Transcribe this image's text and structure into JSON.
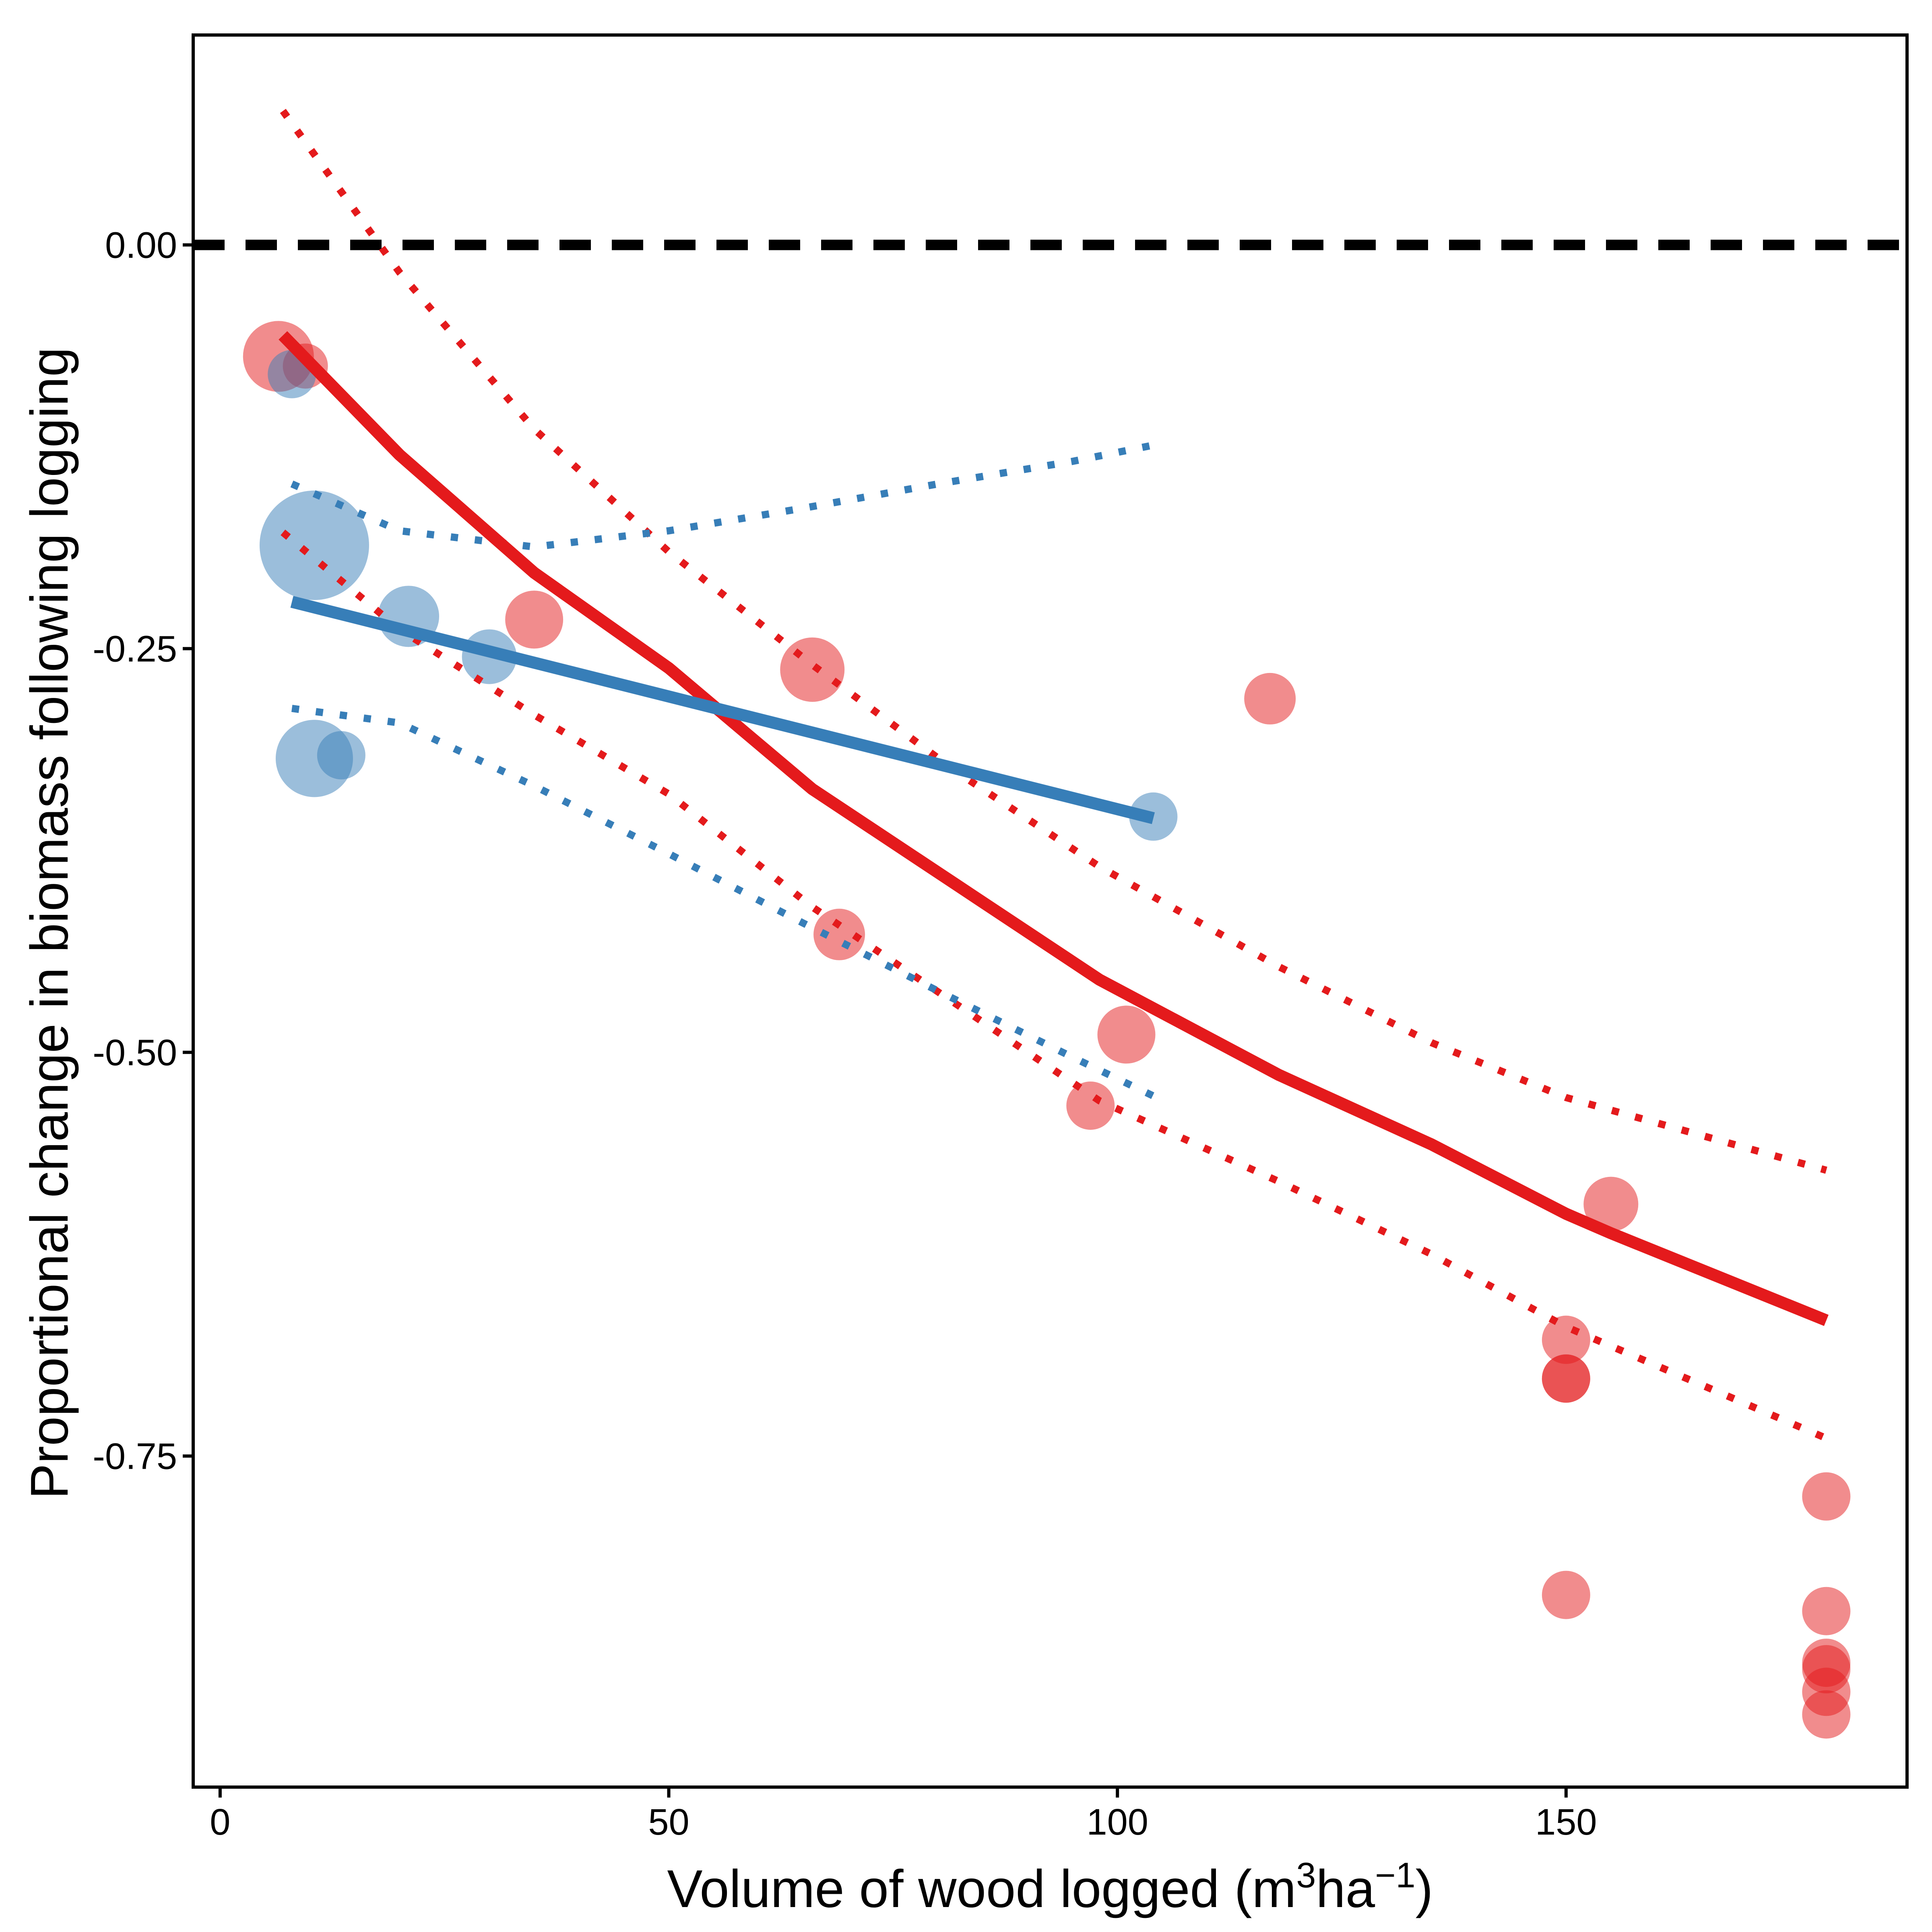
{
  "chart_data": {
    "type": "scatter",
    "xlabel": {
      "prefix": "Volume of wood logged (m",
      "sup1": "3",
      "mid": "ha",
      "sup2": "−1",
      "suffix": ")"
    },
    "ylabel": "Proportional change in biomass following logging",
    "xlim": [
      -3,
      188
    ],
    "ylim": [
      -0.955,
      0.13
    ],
    "x_ticks": [
      0,
      50,
      100,
      150
    ],
    "x_tick_labels": [
      "0",
      "50",
      "100",
      "150"
    ],
    "y_ticks": [
      0.0,
      -0.25,
      -0.5,
      -0.75
    ],
    "y_tick_labels": [
      "0.00",
      "-0.25",
      "-0.50",
      "-0.75"
    ],
    "grid": false,
    "legend": "none",
    "reference_line": {
      "y": 0.0,
      "style": "dashed",
      "color": "#000000"
    },
    "colors": {
      "red": "#E41A1C",
      "blue": "#377EB8"
    },
    "series": [
      {
        "color": "#E41A1C",
        "points": [
          {
            "x": 6.5,
            "y": -0.069,
            "size": 2.2
          },
          {
            "x": 9.5,
            "y": -0.075,
            "size": 1.4
          },
          {
            "x": 35,
            "y": -0.232,
            "size": 1.8
          },
          {
            "x": 66,
            "y": -0.263,
            "size": 2.0
          },
          {
            "x": 69,
            "y": -0.427,
            "size": 1.6
          },
          {
            "x": 97,
            "y": -0.533,
            "size": 1.5
          },
          {
            "x": 101,
            "y": -0.489,
            "size": 1.8
          },
          {
            "x": 117,
            "y": -0.281,
            "size": 1.6
          },
          {
            "x": 150,
            "y": -0.678,
            "size": 1.5
          },
          {
            "x": 150,
            "y": -0.702,
            "size": 1.5
          },
          {
            "x": 150,
            "y": -0.702,
            "size": 1.5
          },
          {
            "x": 150,
            "y": -0.836,
            "size": 1.5
          },
          {
            "x": 155,
            "y": -0.594,
            "size": 1.7
          },
          {
            "x": 179,
            "y": -0.775,
            "size": 1.5
          },
          {
            "x": 179,
            "y": -0.846,
            "size": 1.5
          },
          {
            "x": 179,
            "y": -0.878,
            "size": 1.5
          },
          {
            "x": 179,
            "y": -0.882,
            "size": 1.5
          },
          {
            "x": 179,
            "y": -0.896,
            "size": 1.5
          },
          {
            "x": 179,
            "y": -0.91,
            "size": 1.5
          }
        ],
        "fit": {
          "x": [
            7,
            20,
            35,
            50,
            66,
            82,
            98,
            118,
            135,
            150,
            155,
            179
          ],
          "y": [
            -0.056,
            -0.13,
            -0.203,
            -0.262,
            -0.337,
            -0.396,
            -0.455,
            -0.514,
            -0.557,
            -0.6,
            -0.612,
            -0.666
          ]
        },
        "ci_upper": {
          "x": [
            7,
            20,
            35,
            50,
            66,
            82,
            98,
            118,
            135,
            150,
            179
          ],
          "y": [
            0.083,
            -0.017,
            -0.114,
            -0.19,
            -0.26,
            -0.326,
            -0.385,
            -0.447,
            -0.494,
            -0.528,
            -0.573
          ]
        },
        "ci_lower": {
          "x": [
            7,
            20,
            35,
            50,
            66,
            82,
            98,
            118,
            135,
            150,
            179
          ],
          "y": [
            -0.178,
            -0.238,
            -0.291,
            -0.34,
            -0.41,
            -0.47,
            -0.53,
            -0.58,
            -0.625,
            -0.67,
            -0.739
          ]
        }
      },
      {
        "color": "#377EB8",
        "points": [
          {
            "x": 8,
            "y": -0.08,
            "size": 1.5
          },
          {
            "x": 10.5,
            "y": -0.186,
            "size": 3.4
          },
          {
            "x": 21,
            "y": -0.23,
            "size": 1.9
          },
          {
            "x": 30,
            "y": -0.255,
            "size": 1.7
          },
          {
            "x": 10.5,
            "y": -0.318,
            "size": 2.4
          },
          {
            "x": 13.5,
            "y": -0.316,
            "size": 1.5
          },
          {
            "x": 104,
            "y": -0.354,
            "size": 1.5
          }
        ],
        "fit": {
          "x": [
            8,
            104
          ],
          "y": [
            -0.221,
            -0.355
          ]
        },
        "ci_upper": {
          "x": [
            8,
            20,
            35,
            50,
            65,
            80,
            95,
            104
          ],
          "y": [
            -0.148,
            -0.177,
            -0.187,
            -0.177,
            -0.163,
            -0.148,
            -0.134,
            -0.124
          ]
        },
        "ci_lower": {
          "x": [
            8,
            20,
            35,
            50,
            65,
            80,
            95,
            104
          ],
          "y": [
            -0.287,
            -0.296,
            -0.335,
            -0.377,
            -0.42,
            -0.462,
            -0.503,
            -0.527
          ]
        }
      }
    ]
  }
}
